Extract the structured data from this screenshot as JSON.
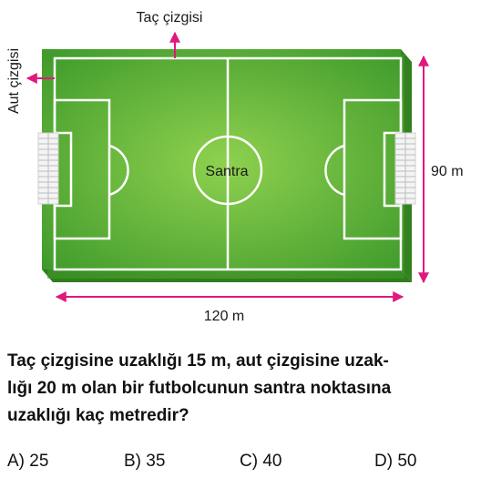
{
  "diagram": {
    "touchline_label": "Taç çizgisi",
    "goal_line_label": "Aut çizgisi",
    "center_label": "Santra",
    "width_label": "120 m",
    "height_label": "90 m"
  },
  "question": {
    "lines": [
      "Taç çizgisine uzaklığı 15 m, aut çizgisine uzak-",
      "lığı 20 m olan bir futbolcunun santra noktasına",
      "uzaklığı kaç metredir?"
    ]
  },
  "options": [
    "A) 25",
    "B) 35",
    "C) 40",
    "D) 50"
  ],
  "colors": {
    "pitch_light": "#8fd14f",
    "pitch_dark": "#3f9a2b",
    "arrow": "#e0197d",
    "lines": "#ffffff"
  }
}
